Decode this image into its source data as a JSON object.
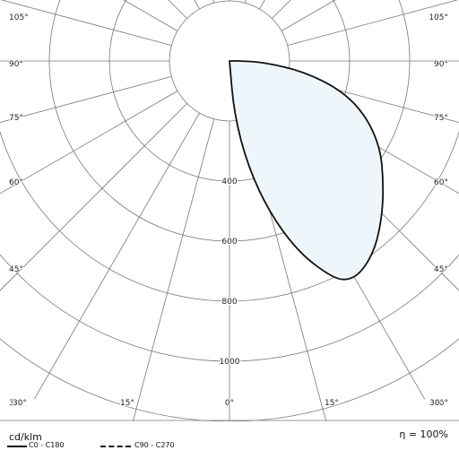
{
  "chart_data": {
    "type": "polar",
    "unit": "cd/klm",
    "efficiency_label": "η = 100%",
    "angle_labels": {
      "left": [
        "105°",
        "90°",
        "75°",
        "60°",
        "45°",
        "30°"
      ],
      "right": [
        "105°",
        "90°",
        "75°",
        "60°",
        "45°",
        "30°"
      ],
      "bottom": [
        "30°",
        "15°",
        "0°",
        "15°",
        "30°"
      ]
    },
    "radial_ticks": [
      400,
      600,
      800,
      1000
    ],
    "radial_tick_labels": [
      "400",
      "600",
      "800",
      "1000"
    ],
    "grid": true,
    "series": [
      {
        "name": "C0 - C180",
        "line_style": "solid",
        "fill": "#eef5fb",
        "points": [
          {
            "angle": 0,
            "value": 0
          },
          {
            "angle": 5,
            "value": 180
          },
          {
            "angle": 10,
            "value": 360
          },
          {
            "angle": 15,
            "value": 530
          },
          {
            "angle": 20,
            "value": 680
          },
          {
            "angle": 25,
            "value": 790
          },
          {
            "angle": 28,
            "value": 830
          },
          {
            "angle": 32,
            "value": 830
          },
          {
            "angle": 38,
            "value": 790
          },
          {
            "angle": 45,
            "value": 720
          },
          {
            "angle": 52,
            "value": 650
          },
          {
            "angle": 60,
            "value": 580
          },
          {
            "angle": 68,
            "value": 490
          },
          {
            "angle": 75,
            "value": 390
          },
          {
            "angle": 82,
            "value": 250
          },
          {
            "angle": 88,
            "value": 110
          },
          {
            "angle": 90,
            "value": 30
          }
        ]
      },
      {
        "name": "C90 - C270",
        "line_style": "dashed",
        "points": []
      }
    ]
  }
}
